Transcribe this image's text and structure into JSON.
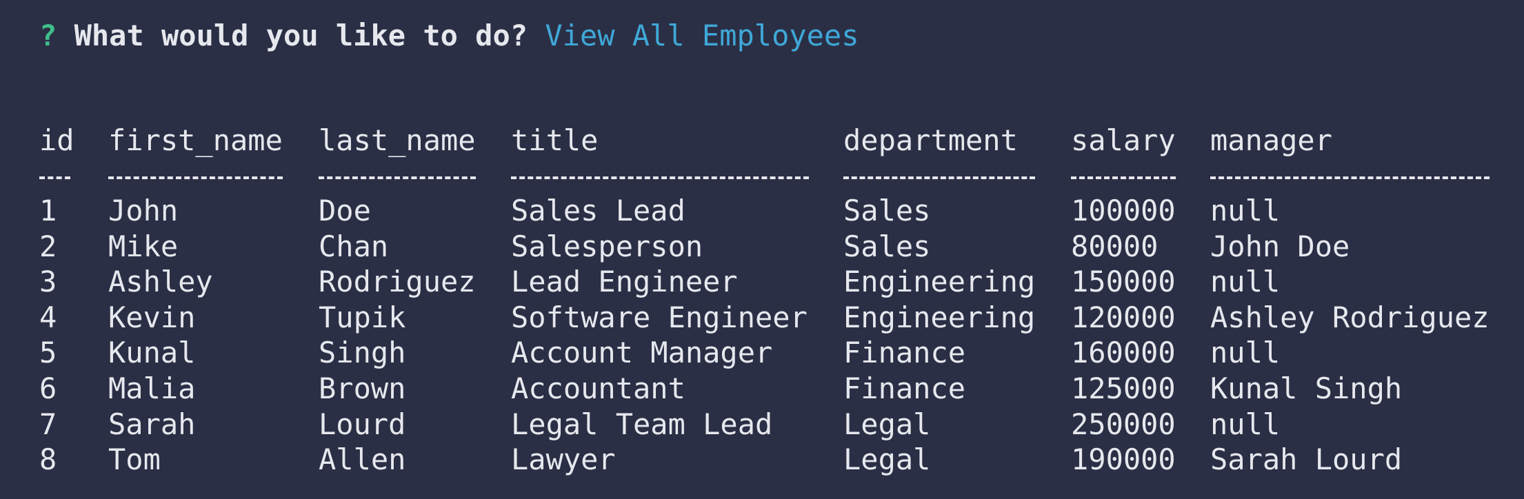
{
  "prompt": {
    "mark": "?",
    "question": "What would you like to do?",
    "answer": "View All Employees"
  },
  "table": {
    "columns": [
      "id",
      "first_name",
      "last_name",
      "title",
      "department",
      "salary",
      "manager"
    ],
    "rows": [
      [
        "1",
        "John",
        "Doe",
        "Sales Lead",
        "Sales",
        "100000",
        "null"
      ],
      [
        "2",
        "Mike",
        "Chan",
        "Salesperson",
        "Sales",
        "80000",
        "John Doe"
      ],
      [
        "3",
        "Ashley",
        "Rodriguez",
        "Lead Engineer",
        "Engineering",
        "150000",
        "null"
      ],
      [
        "4",
        "Kevin",
        "Tupik",
        "Software Engineer",
        "Engineering",
        "120000",
        "Ashley Rodriguez"
      ],
      [
        "5",
        "Kunal",
        "Singh",
        "Account Manager",
        "Finance",
        "160000",
        "null"
      ],
      [
        "6",
        "Malia",
        "Brown",
        "Accountant",
        "Finance",
        "125000",
        "Kunal Singh"
      ],
      [
        "7",
        "Sarah",
        "Lourd",
        "Legal Team Lead",
        "Legal",
        "250000",
        "null"
      ],
      [
        "8",
        "Tom",
        "Allen",
        "Lawyer",
        "Legal",
        "190000",
        "Sarah Lourd"
      ]
    ]
  }
}
